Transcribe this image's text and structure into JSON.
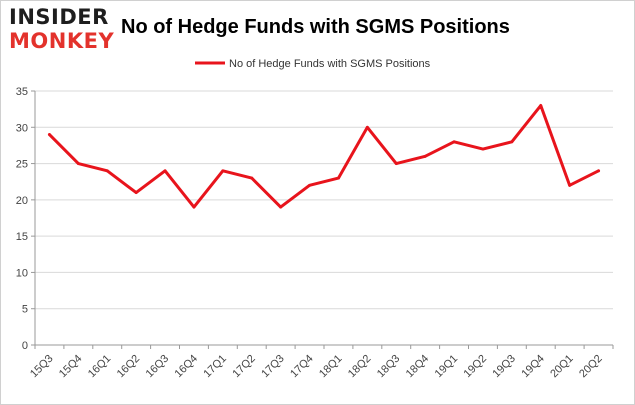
{
  "logo": {
    "line1": "INSIDER",
    "line2": "MONKEY"
  },
  "colors": {
    "series": "#e8141c",
    "logo_dark": "#1e1e1e",
    "logo_red": "#e3322c",
    "grid": "#d9d9d9",
    "axis": "#999999"
  },
  "chart_data": {
    "type": "line",
    "title": "No of Hedge Funds with SGMS Positions",
    "xlabel": "",
    "ylabel": "",
    "categories": [
      "15Q3",
      "15Q4",
      "16Q1",
      "16Q2",
      "16Q3",
      "16Q4",
      "17Q1",
      "17Q2",
      "17Q3",
      "17Q4",
      "18Q1",
      "18Q2",
      "18Q3",
      "18Q4",
      "19Q1",
      "19Q2",
      "19Q3",
      "19Q4",
      "20Q1",
      "20Q2"
    ],
    "series": [
      {
        "name": "No of Hedge Funds with SGMS Positions",
        "values": [
          29,
          25,
          24,
          21,
          24,
          19,
          24,
          23,
          19,
          22,
          23,
          30,
          25,
          26,
          28,
          27,
          28,
          33,
          22,
          24
        ]
      }
    ],
    "ylim": [
      0,
      35
    ],
    "yticks": [
      0,
      5,
      10,
      15,
      20,
      25,
      30,
      35
    ],
    "grid": true,
    "legend": "top-center"
  }
}
